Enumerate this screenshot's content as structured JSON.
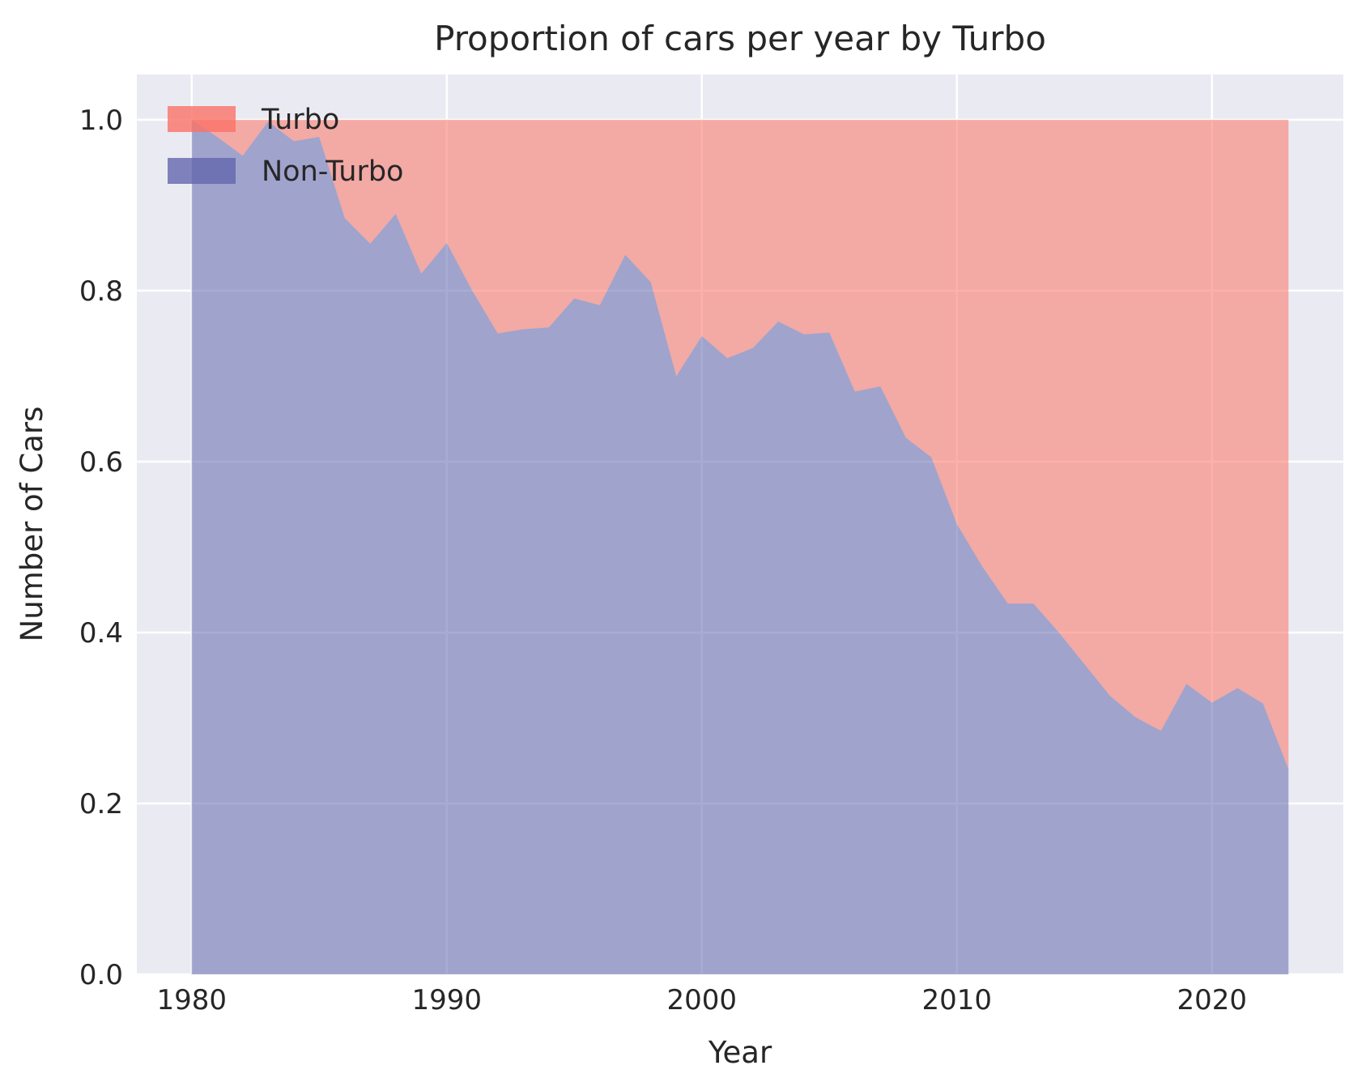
{
  "chart_data": {
    "type": "area",
    "stacked": true,
    "normalized": true,
    "title": "Proportion of cars per year by Turbo",
    "xlabel": "Year",
    "ylabel": "Number of Cars",
    "x": [
      1980,
      1981,
      1982,
      1983,
      1984,
      1985,
      1986,
      1987,
      1988,
      1989,
      1990,
      1991,
      1992,
      1993,
      1994,
      1995,
      1996,
      1997,
      1998,
      1999,
      2000,
      2001,
      2002,
      2003,
      2004,
      2005,
      2006,
      2007,
      2008,
      2009,
      2010,
      2011,
      2012,
      2013,
      2014,
      2015,
      2016,
      2017,
      2018,
      2019,
      2020,
      2021,
      2022,
      2023
    ],
    "series": [
      {
        "name": "Turbo",
        "color": "#FA7265",
        "values": [
          0.0,
          0.02,
          0.042,
          0.002,
          0.025,
          0.02,
          0.115,
          0.145,
          0.11,
          0.18,
          0.144,
          0.2,
          0.25,
          0.245,
          0.243,
          0.209,
          0.217,
          0.158,
          0.19,
          0.3,
          0.253,
          0.279,
          0.267,
          0.236,
          0.251,
          0.249,
          0.318,
          0.312,
          0.372,
          0.395,
          0.473,
          0.523,
          0.566,
          0.566,
          0.6,
          0.637,
          0.674,
          0.699,
          0.715,
          0.66,
          0.682,
          0.665,
          0.683,
          0.76
        ]
      },
      {
        "name": "Non-Turbo",
        "color": "#6367AD",
        "values": [
          1.0,
          0.98,
          0.958,
          0.998,
          0.975,
          0.98,
          0.885,
          0.855,
          0.89,
          0.82,
          0.856,
          0.8,
          0.75,
          0.755,
          0.757,
          0.791,
          0.783,
          0.842,
          0.81,
          0.7,
          0.747,
          0.721,
          0.733,
          0.764,
          0.749,
          0.751,
          0.682,
          0.688,
          0.628,
          0.605,
          0.527,
          0.477,
          0.434,
          0.434,
          0.4,
          0.363,
          0.326,
          0.301,
          0.285,
          0.34,
          0.318,
          0.335,
          0.317,
          0.24
        ]
      }
    ],
    "fill_alpha": 0.55,
    "legend_alpha": 0.8,
    "xlim": [
      1977.85,
      2025.15
    ],
    "ylim": [
      0,
      1.053
    ],
    "xticks": [
      1980,
      1990,
      2000,
      2010,
      2020
    ],
    "xtick_labels": [
      "1980",
      "1990",
      "2000",
      "2010",
      "2020"
    ],
    "yticks": [
      0.0,
      0.2,
      0.4,
      0.6,
      0.8,
      1.0
    ],
    "ytick_labels": [
      "0.0",
      "0.2",
      "0.4",
      "0.6",
      "0.8",
      "1.0"
    ],
    "grid": true,
    "legend_position": "upper left",
    "plot_bg": "#EAEAF2",
    "grid_color": "#FFFFFF",
    "text_color": "#262626"
  }
}
